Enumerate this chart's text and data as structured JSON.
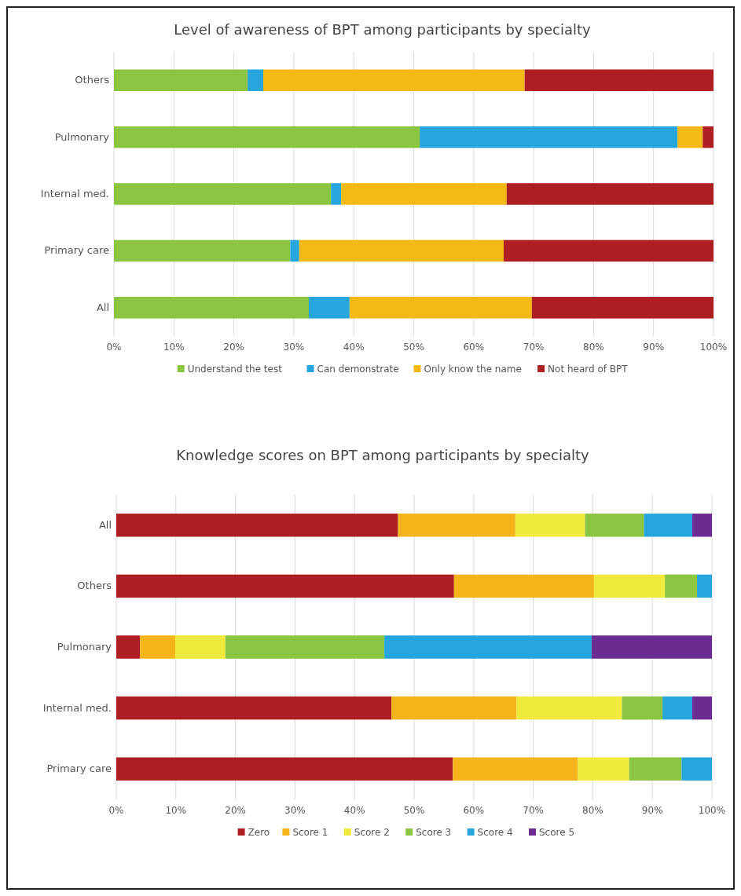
{
  "chart_data": [
    {
      "type": "bar",
      "title": "Level of awareness of BPT among participants by specialty",
      "orientation": "horizontal",
      "stacked": true,
      "categories": [
        "Others",
        "Pulmonary",
        "Internal med.",
        "Primary care",
        "All"
      ],
      "series": [
        {
          "name": "Understand the test",
          "color": "#8cc540",
          "values": [
            22.3,
            51.0,
            36.2,
            29.4,
            32.5
          ]
        },
        {
          "name": "Can demonstrate",
          "color": "#27a6de",
          "values": [
            2.6,
            43.0,
            1.7,
            1.5,
            6.8
          ]
        },
        {
          "name": "Only know the name",
          "color": "#f5b916",
          "values": [
            43.6,
            4.2,
            27.6,
            34.1,
            30.4
          ]
        },
        {
          "name": "Not heard of BPT",
          "color": "#ae1e23",
          "values": [
            31.5,
            1.8,
            34.5,
            35.0,
            30.3
          ]
        }
      ],
      "xlim": [
        0,
        100
      ],
      "xticks": [
        {
          "value": 0,
          "label": "0%"
        },
        {
          "value": 10,
          "label": "10%"
        },
        {
          "value": 20,
          "label": "20%"
        },
        {
          "value": 30,
          "label": "30%"
        },
        {
          "value": 40,
          "label": "40%"
        },
        {
          "value": 50,
          "label": "50%"
        },
        {
          "value": 60,
          "label": "60%"
        },
        {
          "value": 70,
          "label": "70%"
        },
        {
          "value": 80,
          "label": "80%"
        },
        {
          "value": 90,
          "label": "90%"
        },
        {
          "value": 100,
          "label": "100%"
        }
      ],
      "grid": "x",
      "legend": "bottom"
    },
    {
      "type": "bar",
      "title": "Knowledge scores on BPT among participants by specialty",
      "orientation": "horizontal",
      "stacked": true,
      "categories": [
        "All",
        "Others",
        "Pulmonary",
        "Internal med.",
        "Primary care"
      ],
      "series": [
        {
          "name": "Zero",
          "color": "#ae1e23",
          "values": [
            47.3,
            56.7,
            4.0,
            46.2,
            56.5
          ]
        },
        {
          "name": "Score 1",
          "color": "#f5b51a",
          "values": [
            19.7,
            23.5,
            5.9,
            21.0,
            21.0
          ]
        },
        {
          "name": "Score 2",
          "color": "#f0ea3c",
          "values": [
            11.7,
            11.9,
            8.4,
            17.7,
            8.6
          ]
        },
        {
          "name": "Score 3",
          "color": "#8cc540",
          "values": [
            9.9,
            5.4,
            26.7,
            6.8,
            8.8
          ]
        },
        {
          "name": "Score 4",
          "color": "#27a6de",
          "values": [
            8.1,
            2.5,
            34.8,
            5.0,
            5.1
          ]
        },
        {
          "name": "Score 5",
          "color": "#6b2d91",
          "values": [
            3.3,
            0,
            20.2,
            3.3,
            0
          ]
        }
      ],
      "xlim": [
        0,
        100
      ],
      "xticks": [
        {
          "value": 0,
          "label": "0%"
        },
        {
          "value": 10,
          "label": "10%"
        },
        {
          "value": 20,
          "label": "20%"
        },
        {
          "value": 30,
          "label": "30%"
        },
        {
          "value": 40,
          "label": "40%"
        },
        {
          "value": 50,
          "label": "50%"
        },
        {
          "value": 60,
          "label": "60%"
        },
        {
          "value": 70,
          "label": "70%"
        },
        {
          "value": 80,
          "label": "80%"
        },
        {
          "value": 90,
          "label": "90%"
        },
        {
          "value": 100,
          "label": "100%"
        }
      ],
      "grid": "x",
      "legend": "bottom"
    }
  ]
}
